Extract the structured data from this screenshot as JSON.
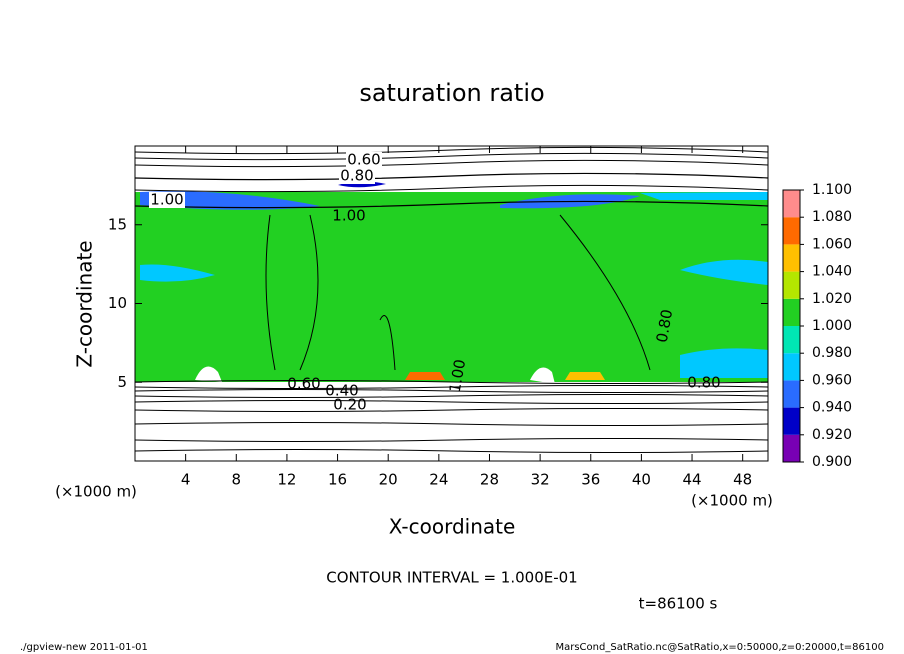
{
  "chart_data": {
    "type": "contour",
    "title": "saturation ratio",
    "x_label": "X-coordinate",
    "y_label": "Z-coordinate",
    "unit_label": "(×1000 m)",
    "xlim": [
      0,
      50
    ],
    "xticks": [
      4,
      8,
      12,
      16,
      20,
      24,
      28,
      32,
      36,
      40,
      44,
      48
    ],
    "ylim": [
      0,
      20
    ],
    "yticks": [
      5,
      10,
      15
    ],
    "levels": [
      {
        "value": 0.9,
        "label": "0.900"
      },
      {
        "value": 0.92,
        "label": "0.920"
      },
      {
        "value": 0.94,
        "label": "0.940"
      },
      {
        "value": 0.96,
        "label": "0.960"
      },
      {
        "value": 0.98,
        "label": "0.980"
      },
      {
        "value": 1.0,
        "label": "1.000"
      },
      {
        "value": 1.02,
        "label": "1.020"
      },
      {
        "value": 1.04,
        "label": "1.040"
      },
      {
        "value": 1.06,
        "label": "1.060"
      },
      {
        "value": 1.08,
        "label": "1.080"
      },
      {
        "value": 1.1,
        "label": "1.100"
      }
    ],
    "colors": [
      "#7800b4",
      "#0000c8",
      "#2a6cff",
      "#00c8ff",
      "#00e6b4",
      "#22d022",
      "#b4e600",
      "#ffc000",
      "#ff6a00",
      "#ff8c8c"
    ],
    "contour_labels": [
      "0.60",
      "0.80",
      "1.00",
      "1.00",
      "1.00",
      "0.80",
      "0.80",
      "0.60",
      "0.40",
      "0.20"
    ],
    "contour_interval": "CONTOUR INTERVAL = 1.000E-01",
    "time_label": "t=86100 s",
    "footer_left": "./gpview-new  2011-01-01",
    "footer_right": "MarsCond_SatRatio.nc@SatRatio,x=0:50000,z=0:20000,t=86100"
  }
}
